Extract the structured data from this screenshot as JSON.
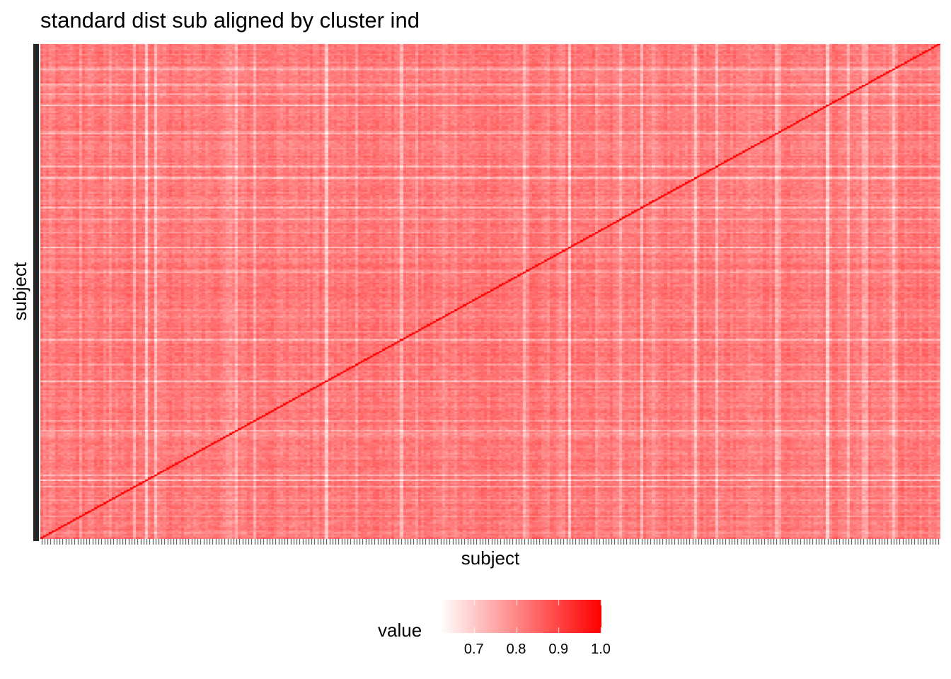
{
  "chart_data": {
    "type": "heatmap",
    "title": "standard dist sub aligned by cluster ind",
    "xlabel": "subject",
    "ylabel": "subject",
    "n_subjects": 300,
    "value_range": [
      0.62,
      1.0
    ],
    "diagonal_value": 1.0,
    "typical_off_diagonal_value": 0.82,
    "color_low": "#ffffff",
    "color_high": "#ff0000",
    "x_tick_labels": "none (subject ids not printed)",
    "y_tick_labels": "none (subject ids not printed)",
    "legend": {
      "title": "value",
      "position": "bottom",
      "breaks": [
        0.7,
        0.8,
        0.9,
        1.0
      ],
      "break_labels": [
        "0.7",
        "0.8",
        "0.9",
        "1.0"
      ]
    }
  }
}
